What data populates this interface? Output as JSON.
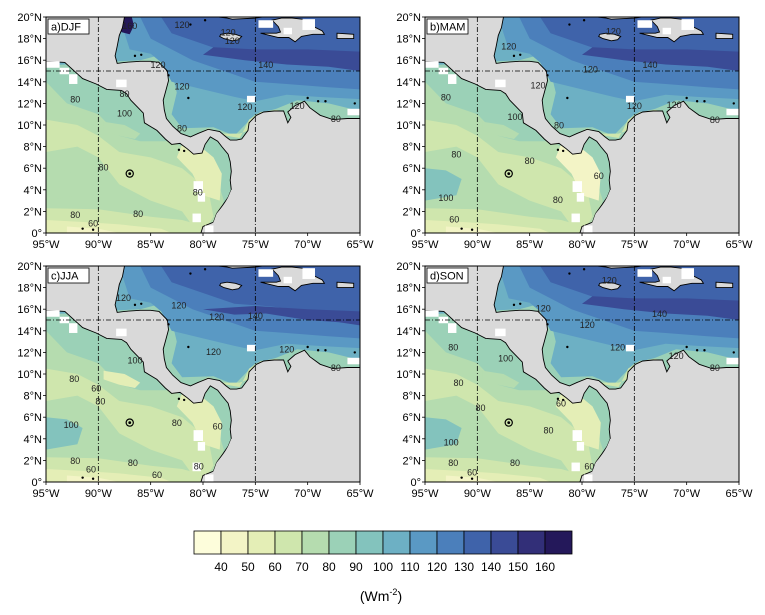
{
  "chart_data": {
    "type": "heatmap",
    "units_label": "(Wm",
    "units_exp": "-2",
    "units_close": ")",
    "lon_ticks": [
      "95°W",
      "90°W",
      "85°W",
      "80°W",
      "75°W",
      "70°W",
      "65°W"
    ],
    "lat_ticks": [
      "0°",
      "2°N",
      "4°N",
      "6°N",
      "8°N",
      "10°N",
      "12°N",
      "14°N",
      "16°N",
      "18°N",
      "20°N"
    ],
    "lon_range": [
      -95,
      -65
    ],
    "lat_range": [
      0,
      20
    ],
    "reference_lines": {
      "lon": [
        -90,
        -75
      ],
      "lat": [
        15
      ]
    },
    "marker": {
      "lon": -87,
      "lat": 5.5
    },
    "colorbar": {
      "levels": [
        40,
        50,
        60,
        70,
        80,
        90,
        100,
        110,
        120,
        130,
        140,
        150,
        160
      ],
      "colors": [
        "#fdfddb",
        "#f3f4c6",
        "#e4eeb6",
        "#cfe6ad",
        "#b5dcaf",
        "#9bd1b7",
        "#83c3bd",
        "#6db0c4",
        "#5a99c4",
        "#4b7fbb",
        "#3f63aa",
        "#3a4b96",
        "#322f78",
        "#24185a"
      ]
    },
    "panels": [
      {
        "label": "a)DJF",
        "contour_labels": [
          {
            "text": "160",
            "lon": -87,
            "lat": 19.1
          },
          {
            "text": "120",
            "lon": -82,
            "lat": 19.2
          },
          {
            "text": "120",
            "lon": -77.6,
            "lat": 18.5
          },
          {
            "text": "120",
            "lon": -77.2,
            "lat": 17.7
          },
          {
            "text": "120",
            "lon": -84.3,
            "lat": 15.5
          },
          {
            "text": "140",
            "lon": -74,
            "lat": 15.5
          },
          {
            "text": "120",
            "lon": -82,
            "lat": 13.5
          },
          {
            "text": "120",
            "lon": -76,
            "lat": 11.6
          },
          {
            "text": "120",
            "lon": -71,
            "lat": 11.7
          },
          {
            "text": "100",
            "lon": -87.5,
            "lat": 11
          },
          {
            "text": "80",
            "lon": -82,
            "lat": 9.6
          },
          {
            "text": "80",
            "lon": -67.3,
            "lat": 10.5
          },
          {
            "text": "80",
            "lon": -92.2,
            "lat": 12.3
          },
          {
            "text": "80",
            "lon": -87.5,
            "lat": 12.8
          },
          {
            "text": "80",
            "lon": -89.5,
            "lat": 6
          },
          {
            "text": "80",
            "lon": -86.2,
            "lat": 1.7
          },
          {
            "text": "80",
            "lon": -92.2,
            "lat": 1.6
          },
          {
            "text": "60",
            "lon": -90.5,
            "lat": 0.8
          },
          {
            "text": "80",
            "lon": -80.5,
            "lat": 3.7
          }
        ]
      },
      {
        "label": "b)MAM",
        "contour_labels": [
          {
            "text": "120",
            "lon": -87,
            "lat": 17.2
          },
          {
            "text": "120",
            "lon": -77,
            "lat": 18.6
          },
          {
            "text": "140",
            "lon": -73.5,
            "lat": 15.5
          },
          {
            "text": "120",
            "lon": -84.2,
            "lat": 13.6
          },
          {
            "text": "120",
            "lon": -79.2,
            "lat": 15.1
          },
          {
            "text": "120",
            "lon": -75,
            "lat": 11.7
          },
          {
            "text": "120",
            "lon": -71.2,
            "lat": 11.8
          },
          {
            "text": "100",
            "lon": -86.4,
            "lat": 10.7
          },
          {
            "text": "80",
            "lon": -82.2,
            "lat": 9.9
          },
          {
            "text": "80",
            "lon": -67.3,
            "lat": 10.4
          },
          {
            "text": "80",
            "lon": -93,
            "lat": 12.5
          },
          {
            "text": "80",
            "lon": -92,
            "lat": 7.2
          },
          {
            "text": "80",
            "lon": -85,
            "lat": 6.6
          },
          {
            "text": "60",
            "lon": -78.4,
            "lat": 5.2
          },
          {
            "text": "80",
            "lon": -82.3,
            "lat": 3
          },
          {
            "text": "100",
            "lon": -93,
            "lat": 3.2
          },
          {
            "text": "60",
            "lon": -92.2,
            "lat": 1.2
          }
        ]
      },
      {
        "label": "c)JJA",
        "contour_labels": [
          {
            "text": "120",
            "lon": -87.6,
            "lat": 17
          },
          {
            "text": "120",
            "lon": -82.3,
            "lat": 16.3
          },
          {
            "text": "120",
            "lon": -78.7,
            "lat": 15.2
          },
          {
            "text": "140",
            "lon": -75,
            "lat": 15.3
          },
          {
            "text": "120",
            "lon": -79,
            "lat": 12
          },
          {
            "text": "120",
            "lon": -72,
            "lat": 12.2
          },
          {
            "text": "80",
            "lon": -67.3,
            "lat": 10.5
          },
          {
            "text": "100",
            "lon": -86.5,
            "lat": 11.2
          },
          {
            "text": "80",
            "lon": -92.3,
            "lat": 9.5
          },
          {
            "text": "60",
            "lon": -90.2,
            "lat": 8.6
          },
          {
            "text": "80",
            "lon": -89.8,
            "lat": 7.4
          },
          {
            "text": "100",
            "lon": -92.6,
            "lat": 5.2
          },
          {
            "text": "80",
            "lon": -82.5,
            "lat": 5.4
          },
          {
            "text": "60",
            "lon": -78.6,
            "lat": 5.1
          },
          {
            "text": "80",
            "lon": -86.7,
            "lat": 1.7
          },
          {
            "text": "80",
            "lon": -92.2,
            "lat": 1.9
          },
          {
            "text": "60",
            "lon": -90.7,
            "lat": 1.1
          },
          {
            "text": "60",
            "lon": -84.4,
            "lat": 0.6
          },
          {
            "text": "80",
            "lon": -80.4,
            "lat": 1.4
          }
        ]
      },
      {
        "label": "d)SON",
        "contour_labels": [
          {
            "text": "120",
            "lon": -77.4,
            "lat": 18.6
          },
          {
            "text": "140",
            "lon": -72.6,
            "lat": 15.5
          },
          {
            "text": "120",
            "lon": -83.7,
            "lat": 16
          },
          {
            "text": "120",
            "lon": -79.5,
            "lat": 14.5
          },
          {
            "text": "120",
            "lon": -76.6,
            "lat": 12.4
          },
          {
            "text": "120",
            "lon": -71,
            "lat": 11.6
          },
          {
            "text": "80",
            "lon": -67.3,
            "lat": 10.5
          },
          {
            "text": "100",
            "lon": -87.3,
            "lat": 11.4
          },
          {
            "text": "80",
            "lon": -92.3,
            "lat": 12.4
          },
          {
            "text": "80",
            "lon": -91.8,
            "lat": 9.1
          },
          {
            "text": "60",
            "lon": -82,
            "lat": 7.2
          },
          {
            "text": "80",
            "lon": -89.7,
            "lat": 6.8
          },
          {
            "text": "100",
            "lon": -92.5,
            "lat": 3.6
          },
          {
            "text": "80",
            "lon": -83.2,
            "lat": 4.7
          },
          {
            "text": "80",
            "lon": -86.4,
            "lat": 1.7
          },
          {
            "text": "80",
            "lon": -92.3,
            "lat": 1.7
          },
          {
            "text": "60",
            "lon": -90.5,
            "lat": 0.8
          },
          {
            "text": "60",
            "lon": -79.3,
            "lat": 1.4
          }
        ]
      }
    ]
  }
}
